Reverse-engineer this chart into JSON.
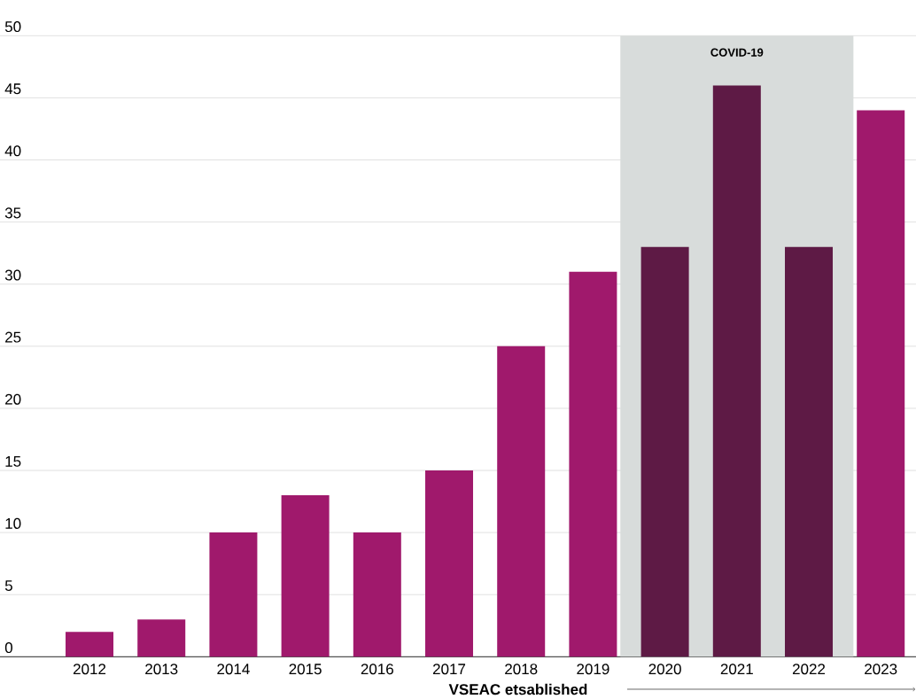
{
  "chart_data": {
    "type": "bar",
    "categories": [
      "2012",
      "2013",
      "2014",
      "2015",
      "2016",
      "2017",
      "2018",
      "2019",
      "2020",
      "2021",
      "2022",
      "2023"
    ],
    "values": [
      2,
      3,
      10,
      13,
      10,
      15,
      25,
      31,
      33,
      46,
      33,
      44
    ],
    "colors": [
      "#a0196c",
      "#a0196c",
      "#a0196c",
      "#a0196c",
      "#a0196c",
      "#a0196c",
      "#a0196c",
      "#a0196c",
      "#5e1a45",
      "#5e1a45",
      "#5e1a45",
      "#a0196c"
    ],
    "ylim": [
      0,
      50
    ],
    "yticks": [
      0,
      5,
      10,
      15,
      20,
      25,
      30,
      35,
      40,
      45,
      50
    ],
    "grid": "y",
    "bands": [
      {
        "axis": "x",
        "from": "2020",
        "to": "2022",
        "label": "COVID-19",
        "color": "#d8dcdb"
      }
    ],
    "annotations": [
      "VSEAC etsablished"
    ]
  }
}
